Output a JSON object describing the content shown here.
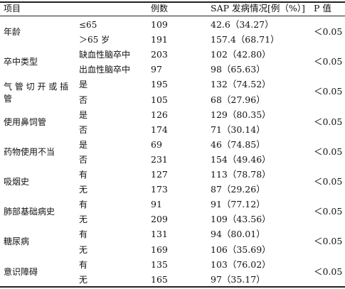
{
  "headers": {
    "item": "项目",
    "count": "例数",
    "sap": "SAP 发病情况[例（%）]",
    "p": "P 值"
  },
  "groups": [
    {
      "name": "年龄",
      "name_lines": [
        "年龄"
      ],
      "p": "＜0.05",
      "rows": [
        {
          "sub": "≤65",
          "n": "109",
          "v": "42.6（34.27）"
        },
        {
          "sub": "＞65 岁",
          "n": "191",
          "v": "157.4（68.71）"
        }
      ]
    },
    {
      "name": "卒中类型",
      "name_lines": [
        "卒中类型"
      ],
      "p": "＜0.05",
      "rows": [
        {
          "sub": "缺血性脑卒中",
          "n": "203",
          "v": "102（42.80）"
        },
        {
          "sub": "出血性脑卒中",
          "n": "97",
          "v": "98（65.63）"
        }
      ]
    },
    {
      "name": "气管切开或插管",
      "name_lines": [
        "气 管 切 开 或 插",
        "管"
      ],
      "p": "＜0.05",
      "rows": [
        {
          "sub": "是",
          "n": "195",
          "v": "132（74.52）"
        },
        {
          "sub": "否",
          "n": "105",
          "v": "68（27.96）"
        }
      ]
    },
    {
      "name": "使用鼻饲管",
      "name_lines": [
        "使用鼻饲管"
      ],
      "p": "＜0.05",
      "rows": [
        {
          "sub": "是",
          "n": "126",
          "v": "129（80.35）"
        },
        {
          "sub": "否",
          "n": "174",
          "v": "71（30.14）"
        }
      ]
    },
    {
      "name": "药物使用不当",
      "name_lines": [
        "药物使用不当"
      ],
      "p": "＜0.05",
      "rows": [
        {
          "sub": "是",
          "n": "69",
          "v": "46（74.85）"
        },
        {
          "sub": "否",
          "n": "231",
          "v": "154（49.46）"
        }
      ]
    },
    {
      "name": "吸烟史",
      "name_lines": [
        "吸烟史"
      ],
      "p": "＜0.05",
      "rows": [
        {
          "sub": "有",
          "n": "127",
          "v": "113（78.78）"
        },
        {
          "sub": "无",
          "n": "173",
          "v": "87（29.26）"
        }
      ]
    },
    {
      "name": "肺部基础病史",
      "name_lines": [
        "肺部基础病史"
      ],
      "p": "＜0.05",
      "rows": [
        {
          "sub": "有",
          "n": "91",
          "v": "91（77.12）"
        },
        {
          "sub": "无",
          "n": "209",
          "v": "109（43.56）"
        }
      ]
    },
    {
      "name": "糖尿病",
      "name_lines": [
        "糖尿病"
      ],
      "p": "＜0.05",
      "rows": [
        {
          "sub": "有",
          "n": "131",
          "v": "94（80.01）"
        },
        {
          "sub": "无",
          "n": "169",
          "v": "106（35.69）"
        }
      ]
    },
    {
      "name": "意识障碍",
      "name_lines": [
        "意识障碍"
      ],
      "p": "＜0.05",
      "rows": [
        {
          "sub": "有",
          "n": "135",
          "v": "103（76.02）"
        },
        {
          "sub": "无",
          "n": "165",
          "v": "97（35.17）"
        }
      ]
    }
  ]
}
